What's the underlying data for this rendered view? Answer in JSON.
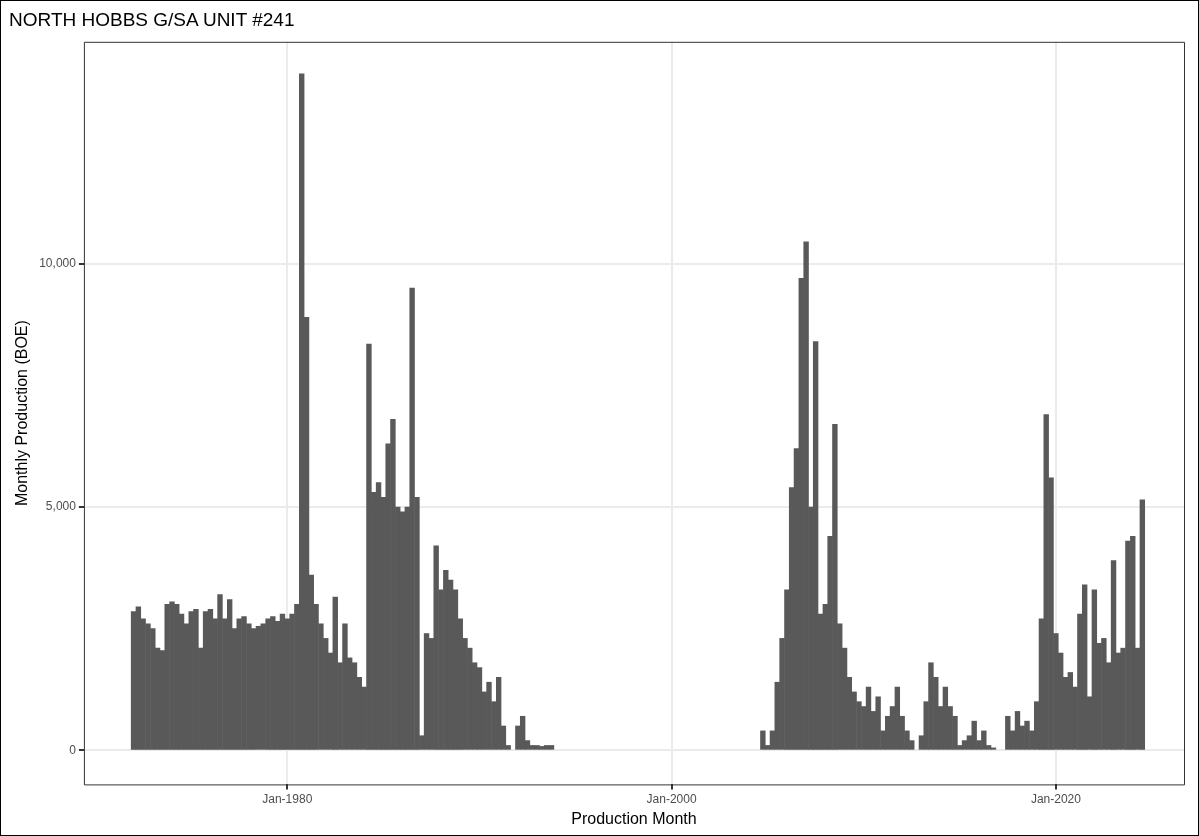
{
  "chart_data": {
    "type": "bar",
    "title": "NORTH HOBBS G/SA UNIT #241",
    "xlabel": "Production Month",
    "ylabel": "Monthly Production (BOE)",
    "color": "#595959",
    "grid": true,
    "legend": false,
    "xlim": [
      "1969-06",
      "2026-09"
    ],
    "xticks": [
      {
        "value": "1980-01",
        "label": "Jan-1980"
      },
      {
        "value": "2000-01",
        "label": "Jan-2000"
      },
      {
        "value": "2020-01",
        "label": "Jan-2020"
      }
    ],
    "ylim": [
      -700,
      14560
    ],
    "yticks": [
      {
        "value": 0,
        "label": "0"
      },
      {
        "value": 5000,
        "label": "5,000"
      },
      {
        "value": 10000,
        "label": "10,000"
      }
    ],
    "x": [
      "1972-01",
      "1972-04",
      "1972-07",
      "1972-10",
      "1973-01",
      "1973-04",
      "1973-07",
      "1973-10",
      "1974-01",
      "1974-04",
      "1974-07",
      "1974-10",
      "1975-01",
      "1975-04",
      "1975-07",
      "1975-10",
      "1976-01",
      "1976-04",
      "1976-07",
      "1976-10",
      "1977-01",
      "1977-04",
      "1977-07",
      "1977-10",
      "1978-01",
      "1978-04",
      "1978-07",
      "1978-10",
      "1979-01",
      "1979-04",
      "1979-07",
      "1979-10",
      "1980-01",
      "1980-04",
      "1980-07",
      "1980-10",
      "1981-01",
      "1981-04",
      "1981-07",
      "1981-10",
      "1982-01",
      "1982-04",
      "1982-07",
      "1982-10",
      "1983-01",
      "1983-04",
      "1983-07",
      "1983-10",
      "1984-01",
      "1984-04",
      "1984-07",
      "1984-10",
      "1985-01",
      "1985-04",
      "1985-07",
      "1985-10",
      "1986-01",
      "1986-04",
      "1986-07",
      "1986-10",
      "1987-01",
      "1987-04",
      "1987-07",
      "1987-10",
      "1988-01",
      "1988-04",
      "1988-07",
      "1988-10",
      "1989-01",
      "1989-04",
      "1989-07",
      "1989-10",
      "1990-01",
      "1990-04",
      "1990-07",
      "1990-10",
      "1991-01",
      "1991-04",
      "1991-07",
      "1992-01",
      "1992-04",
      "1992-07",
      "1992-10",
      "1993-01",
      "1993-04",
      "1993-07",
      "1993-10",
      "2004-10",
      "2005-01",
      "2005-04",
      "2005-07",
      "2005-10",
      "2006-01",
      "2006-04",
      "2006-07",
      "2006-10",
      "2007-01",
      "2007-04",
      "2007-07",
      "2007-10",
      "2008-01",
      "2008-04",
      "2008-07",
      "2008-10",
      "2009-01",
      "2009-04",
      "2009-07",
      "2009-10",
      "2010-01",
      "2010-04",
      "2010-07",
      "2010-10",
      "2011-01",
      "2011-04",
      "2011-07",
      "2011-10",
      "2012-01",
      "2012-04",
      "2012-07",
      "2013-01",
      "2013-04",
      "2013-07",
      "2013-10",
      "2014-01",
      "2014-04",
      "2014-07",
      "2014-10",
      "2015-01",
      "2015-04",
      "2015-07",
      "2015-10",
      "2016-01",
      "2016-04",
      "2016-07",
      "2016-10",
      "2017-07",
      "2017-10",
      "2018-01",
      "2018-04",
      "2018-07",
      "2018-10",
      "2019-01",
      "2019-04",
      "2019-07",
      "2019-10",
      "2020-01",
      "2020-04",
      "2020-07",
      "2020-10",
      "2021-01",
      "2021-04",
      "2021-07",
      "2021-10",
      "2022-01",
      "2022-04",
      "2022-07",
      "2022-10",
      "2023-01",
      "2023-04",
      "2023-07",
      "2023-10",
      "2024-01",
      "2024-04",
      "2024-07"
    ],
    "values": [
      2850,
      2950,
      2700,
      2600,
      2500,
      2100,
      2050,
      3000,
      3050,
      3000,
      2800,
      2600,
      2850,
      2900,
      2100,
      2850,
      2900,
      2700,
      3200,
      2700,
      3100,
      2500,
      2700,
      2750,
      2600,
      2500,
      2550,
      2600,
      2700,
      2750,
      2650,
      2800,
      2700,
      2800,
      3000,
      13900,
      8900,
      3600,
      3000,
      2600,
      2300,
      2000,
      3150,
      1800,
      2600,
      1900,
      1800,
      1500,
      1300,
      8350,
      5300,
      5500,
      5200,
      6300,
      6800,
      5000,
      4900,
      5000,
      9500,
      5200,
      300,
      2400,
      2300,
      4200,
      3300,
      3700,
      3500,
      3300,
      2700,
      2300,
      2100,
      1800,
      1700,
      1200,
      1400,
      1000,
      1500,
      500,
      100,
      500,
      700,
      200,
      100,
      100,
      80,
      100,
      100,
      400,
      100,
      400,
      1400,
      2300,
      3300,
      5400,
      6200,
      9700,
      10450,
      5000,
      8400,
      2800,
      3000,
      4400,
      6700,
      2600,
      2100,
      1500,
      1200,
      1000,
      900,
      1300,
      800,
      1100,
      400,
      700,
      900,
      1300,
      700,
      400,
      200,
      300,
      1000,
      1800,
      1500,
      900,
      1300,
      900,
      700,
      100,
      200,
      300,
      600,
      200,
      400,
      100,
      50,
      700,
      400,
      800,
      500,
      600,
      400,
      1000,
      2700,
      6900,
      5600,
      2400,
      2000,
      1500,
      1600,
      1300,
      2800,
      3400,
      1100,
      3300,
      2200,
      2300,
      1800,
      3900,
      2000,
      2100,
      4300,
      4400,
      2100,
      5150
    ]
  }
}
